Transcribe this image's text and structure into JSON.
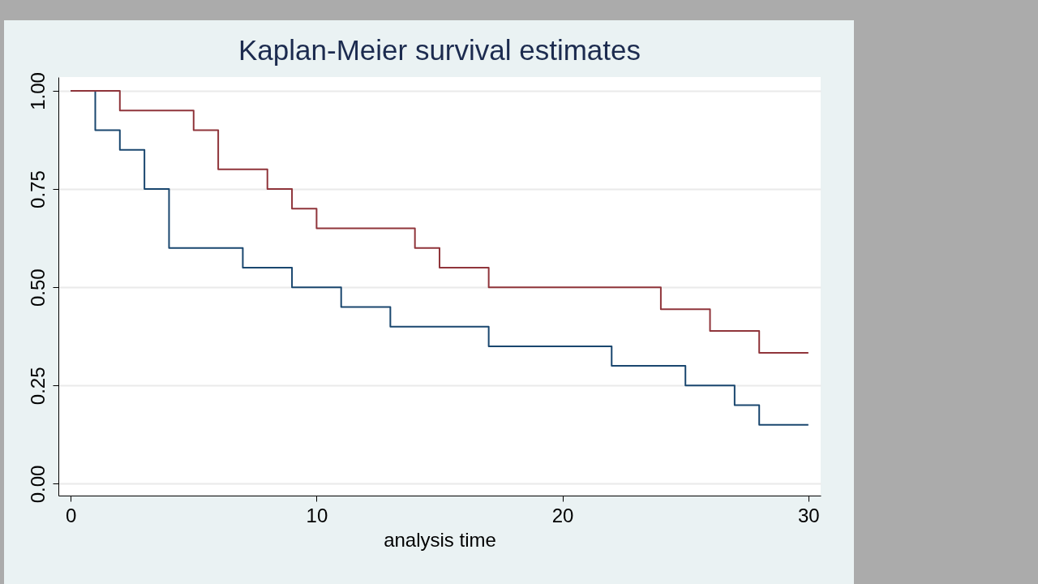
{
  "chart_data": {
    "type": "step",
    "title": "Kaplan-Meier survival estimates",
    "xlabel": "analysis time",
    "x": [
      0,
      1,
      2,
      3,
      4,
      5,
      6,
      7,
      8,
      9,
      10,
      11,
      13,
      14,
      15,
      17,
      22,
      24,
      25,
      26,
      27,
      28,
      30
    ],
    "series": [
      {
        "color": "#1a476f",
        "values": [
          1,
          0.9,
          0.85,
          0.75,
          0.6,
          0.6,
          0.6,
          0.55,
          0.55,
          0.5,
          0.5,
          0.45,
          0.4,
          0.4,
          0.4,
          0.35,
          0.3,
          0.3,
          0.25,
          0.25,
          0.2,
          0.15,
          0.15
        ]
      },
      {
        "color": "#90353b",
        "values": [
          1,
          1,
          0.95,
          0.95,
          0.95,
          0.9,
          0.8,
          0.8,
          0.75,
          0.7,
          0.65,
          0.65,
          0.65,
          0.6,
          0.55,
          0.5,
          0.5,
          0.444,
          0.444,
          0.389,
          0.389,
          0.333,
          0.333
        ]
      }
    ],
    "xlim": [
      -0.5,
      30.5
    ],
    "xticks": [
      0,
      10,
      20,
      30
    ],
    "ylim": [
      -0.03,
      1.035
    ],
    "yticks": [
      {
        "value": 0,
        "label": "0.00"
      },
      {
        "value": 0.25,
        "label": "0.25"
      },
      {
        "value": 0.5,
        "label": "0.50"
      },
      {
        "value": 0.75,
        "label": "0.75"
      },
      {
        "value": 1,
        "label": "1.00"
      }
    ],
    "grid": "y",
    "legend": false
  }
}
